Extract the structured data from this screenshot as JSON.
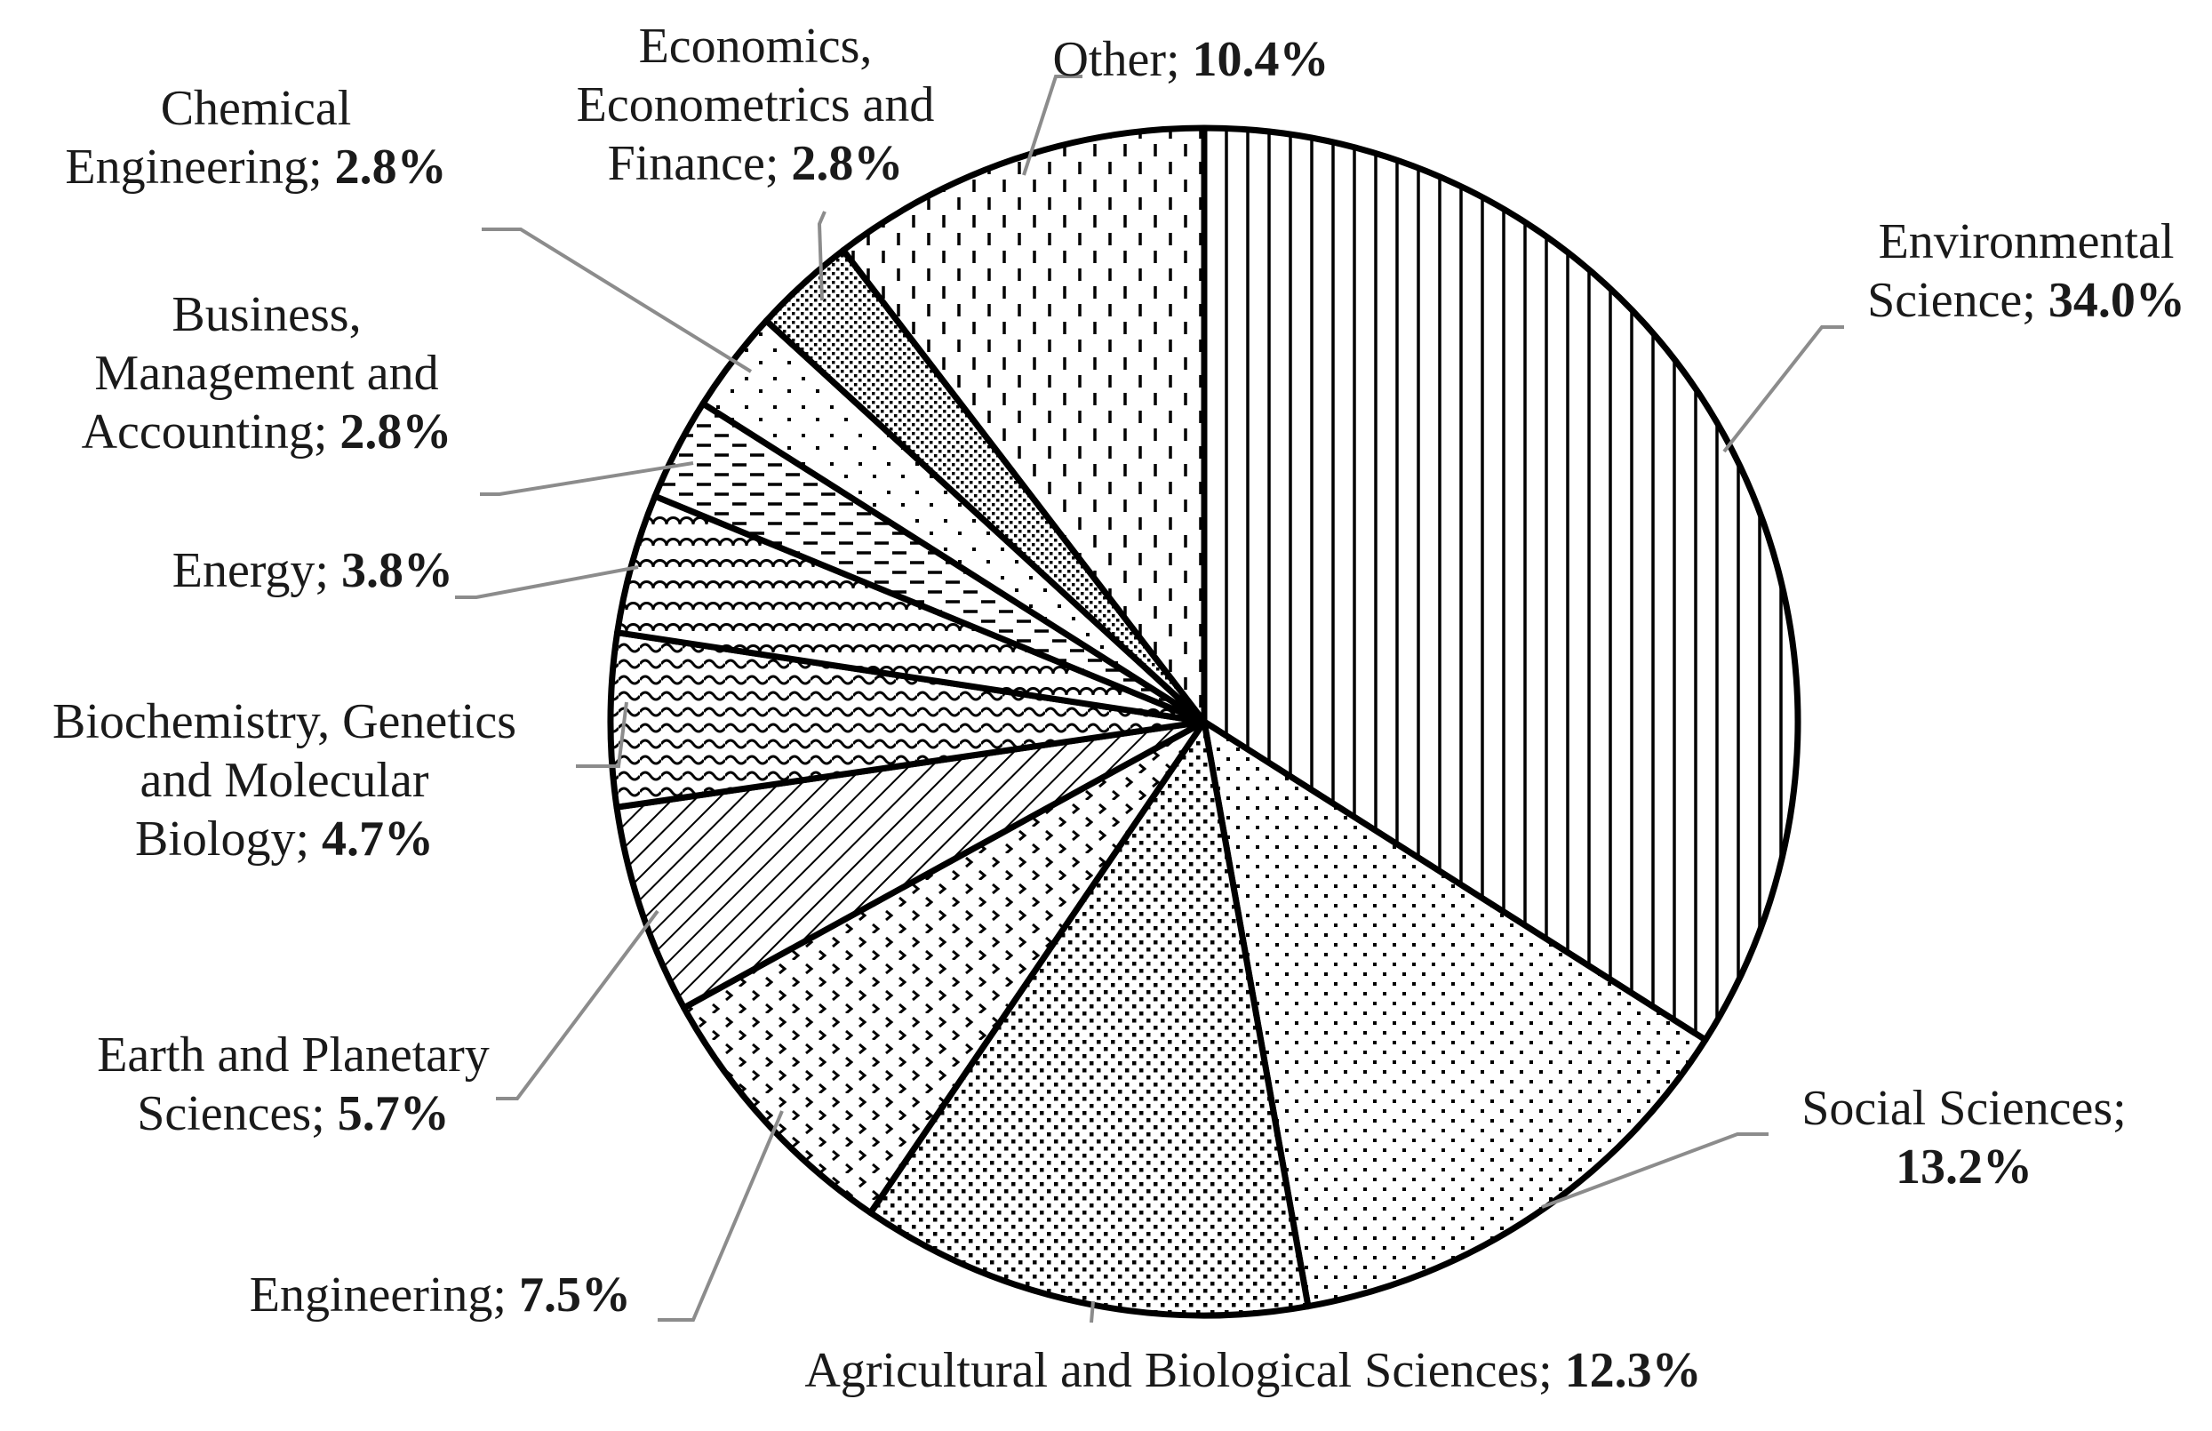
{
  "chart_data": {
    "type": "pie",
    "title": "",
    "start_angle_deg": 0,
    "direction": "clockwise",
    "slices": [
      {
        "label": "Environmental Science",
        "value": 34.0,
        "pct_text": "34.0%",
        "pattern": "vertical-lines"
      },
      {
        "label": "Social Sciences",
        "value": 13.2,
        "pct_text": "13.2%",
        "pattern": "sparse-dots"
      },
      {
        "label": "Agricultural and Biological Sciences",
        "value": 12.3,
        "pct_text": "12.3%",
        "pattern": "dense-dots"
      },
      {
        "label": "Engineering",
        "value": 7.5,
        "pct_text": "7.5%",
        "pattern": "chevrons"
      },
      {
        "label": "Earth and Planetary Sciences",
        "value": 5.7,
        "pct_text": "5.7%",
        "pattern": "diagonal-hatch"
      },
      {
        "label": "Biochemistry, Genetics and Molecular Biology",
        "value": 4.7,
        "pct_text": "4.7%",
        "pattern": "waves"
      },
      {
        "label": "Energy",
        "value": 3.8,
        "pct_text": "3.8%",
        "pattern": "scallops"
      },
      {
        "label": "Business, Management and Accounting",
        "value": 2.8,
        "pct_text": "2.8%",
        "pattern": "dashes"
      },
      {
        "label": "Chemical Engineering",
        "value": 2.8,
        "pct_text": "2.8%",
        "pattern": "scattered-dots"
      },
      {
        "label": "Economics, Econometrics and Finance",
        "value": 2.8,
        "pct_text": "2.8%",
        "pattern": "fine-grid"
      },
      {
        "label": "Other",
        "value": 10.4,
        "pct_text": "10.4%",
        "pattern": "vertical-dashes"
      }
    ],
    "label_lines": [
      [
        {
          "t": "Environmental"
        },
        {
          "t": "Science; ",
          "p": "34.0%"
        }
      ],
      [
        {
          "t": "Social Sciences;"
        },
        {
          "p": "13.2%"
        }
      ],
      [
        {
          "t": "Agricultural  and Biological  Sciences; ",
          "p": "12.3%"
        }
      ],
      [
        {
          "t": "Engineering;  ",
          "p": "7.5%"
        }
      ],
      [
        {
          "t": "Earth and Planetary"
        },
        {
          "t": "Sciences; ",
          "p": "5.7%"
        }
      ],
      [
        {
          "t": "Biochemistry, Genetics"
        },
        {
          "t": "and Molecular"
        },
        {
          "t": "Biology;  ",
          "p": "4.7%"
        }
      ],
      [
        {
          "t": "Energy;  ",
          "p": "3.8%"
        }
      ],
      [
        {
          "t": "Business,"
        },
        {
          "t": "Management  and"
        },
        {
          "t": "Accounting; ",
          "p": "2.8%"
        }
      ],
      [
        {
          "t": "Chemical"
        },
        {
          "t": "Engineering;  ",
          "p": "2.8%"
        }
      ],
      [
        {
          "t": "Economics,"
        },
        {
          "t": "Econometrics and"
        },
        {
          "t": "Finance; ",
          "p": "2.8%"
        }
      ],
      [
        {
          "t": "Other; ",
          "p": "10.4%"
        }
      ]
    ],
    "legend": "none",
    "data_labels": "outside-with-leader-lines",
    "colors": {
      "stroke": "#000000",
      "fill": "#ffffff",
      "leader": "#8c8c8c",
      "text": "#1a1a1a"
    }
  }
}
